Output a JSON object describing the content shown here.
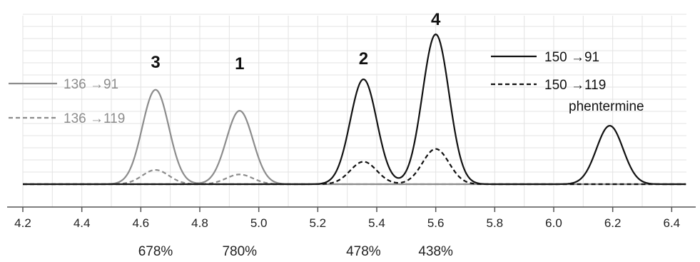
{
  "chart_data": {
    "type": "line",
    "title": "",
    "xlabel": "",
    "ylabel": "",
    "xlim": [
      4.2,
      6.45
    ],
    "ylim": [
      0,
      1.0
    ],
    "grid": true,
    "x_ticks": [
      "4.2",
      "4.4",
      "4.6",
      "4.8",
      "5.0",
      "5.2",
      "5.4",
      "5.6",
      "5.8",
      "6.0",
      "6.2",
      "6.4"
    ],
    "colors": {
      "gray": "#8c8c8c",
      "black": "#111111",
      "grid": "#e3e3e3",
      "axis": "#555555"
    },
    "series": [
      {
        "name": "136 →91",
        "color": "#8c8c8c",
        "dash": "solid",
        "peaks": [
          {
            "x": 4.65,
            "y": 0.63
          },
          {
            "x": 4.935,
            "y": 0.49
          }
        ]
      },
      {
        "name": "136 →119",
        "color": "#8c8c8c",
        "dash": "dashed",
        "peaks": [
          {
            "x": 4.65,
            "y": 0.095
          },
          {
            "x": 4.935,
            "y": 0.065
          }
        ]
      },
      {
        "name": "150 →91",
        "color": "#111111",
        "dash": "solid",
        "peaks": [
          {
            "x": 5.355,
            "y": 0.7
          },
          {
            "x": 5.6,
            "y": 1.0
          },
          {
            "x": 6.19,
            "y": 0.39
          }
        ]
      },
      {
        "name": "150 →119",
        "color": "#111111",
        "dash": "dashed",
        "peaks": [
          {
            "x": 5.355,
            "y": 0.15
          },
          {
            "x": 5.6,
            "y": 0.235
          }
        ]
      }
    ],
    "peak_labels": [
      {
        "text": "3",
        "x": 4.65
      },
      {
        "text": "1",
        "x": 4.935
      },
      {
        "text": "2",
        "x": 5.355
      },
      {
        "text": "4",
        "x": 5.6
      }
    ],
    "percent_labels": [
      {
        "text": "678%",
        "x": 4.65
      },
      {
        "text": "780%",
        "x": 4.935
      },
      {
        "text": "478%",
        "x": 5.355
      },
      {
        "text": "438%",
        "x": 5.6
      }
    ],
    "legends": [
      {
        "label": "136 →91",
        "color": "#8c8c8c",
        "dash": "solid"
      },
      {
        "label": "136 →119",
        "color": "#8c8c8c",
        "dash": "dashed"
      },
      {
        "label": "150 →91",
        "color": "#111111",
        "dash": "solid"
      },
      {
        "label": "150 →119",
        "color": "#111111",
        "dash": "dashed"
      }
    ],
    "annotations": [
      {
        "text": "phentermine"
      }
    ]
  }
}
